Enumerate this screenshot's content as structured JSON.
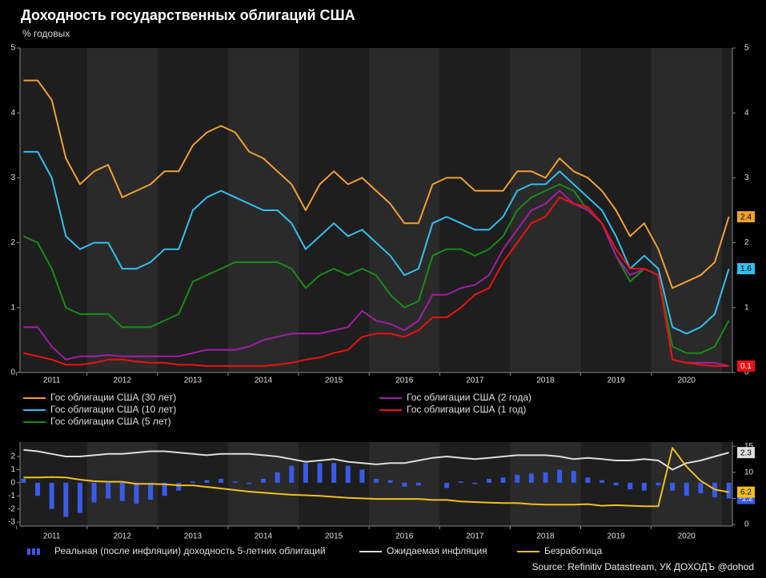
{
  "title": "Доходность государственных облигаций США",
  "subtitle": "% годовых",
  "source": "Source: Refinitiv Datastream, УК ДОХОДЪ @dohod",
  "chart_data": [
    {
      "type": "line",
      "xlim": [
        2011.05,
        2021.15
      ],
      "xticks": [
        {
          "value": 2011.5,
          "label": "2011"
        },
        {
          "value": 2012.5,
          "label": "2012"
        },
        {
          "value": 2013.5,
          "label": "2013"
        },
        {
          "value": 2014.5,
          "label": "2014"
        },
        {
          "value": 2015.5,
          "label": "2015"
        },
        {
          "value": 2016.5,
          "label": "2016"
        },
        {
          "value": 2017.5,
          "label": "2017"
        },
        {
          "value": 2018.5,
          "label": "2018"
        },
        {
          "value": 2019.5,
          "label": "2019"
        },
        {
          "value": 2020.5,
          "label": "2020"
        }
      ],
      "ylim": [
        0,
        5
      ],
      "yticks": [
        0,
        1,
        2,
        3,
        4,
        5
      ],
      "y2lim": [
        0,
        5
      ],
      "y2ticks": [
        0,
        1,
        2,
        3,
        4,
        5
      ],
      "grid": false,
      "x": [
        2011.1,
        2011.3,
        2011.5,
        2011.7,
        2011.9,
        2012.1,
        2012.3,
        2012.5,
        2012.7,
        2012.9,
        2013.1,
        2013.3,
        2013.5,
        2013.7,
        2013.9,
        2014.1,
        2014.3,
        2014.5,
        2014.7,
        2014.9,
        2015.1,
        2015.3,
        2015.5,
        2015.7,
        2015.9,
        2016.1,
        2016.3,
        2016.5,
        2016.7,
        2016.9,
        2017.1,
        2017.3,
        2017.5,
        2017.7,
        2017.9,
        2018.1,
        2018.3,
        2018.5,
        2018.7,
        2018.9,
        2019.1,
        2019.3,
        2019.5,
        2019.7,
        2019.9,
        2020.1,
        2020.3,
        2020.5,
        2020.7,
        2020.9,
        2021.1
      ],
      "series": [
        {
          "name": "Гос облигации США (30 лет)",
          "color": "#f0a030",
          "end_label": true,
          "values": [
            4.5,
            4.5,
            4.2,
            3.3,
            2.9,
            3.1,
            3.2,
            2.7,
            2.8,
            2.9,
            3.1,
            3.1,
            3.5,
            3.7,
            3.8,
            3.7,
            3.4,
            3.3,
            3.1,
            2.9,
            2.5,
            2.9,
            3.1,
            2.9,
            3.0,
            2.8,
            2.6,
            2.3,
            2.3,
            2.9,
            3.0,
            3.0,
            2.8,
            2.8,
            2.8,
            3.1,
            3.1,
            3.0,
            3.3,
            3.1,
            3.0,
            2.8,
            2.5,
            2.1,
            2.3,
            1.9,
            1.3,
            1.4,
            1.5,
            1.7,
            2.4
          ]
        },
        {
          "name": "Гос облигации США (10 лет)",
          "color": "#30c0f0",
          "end_label": true,
          "values": [
            3.4,
            3.4,
            3.0,
            2.1,
            1.9,
            2.0,
            2.0,
            1.6,
            1.6,
            1.7,
            1.9,
            1.9,
            2.5,
            2.7,
            2.8,
            2.7,
            2.6,
            2.5,
            2.5,
            2.3,
            1.9,
            2.1,
            2.3,
            2.1,
            2.2,
            2.0,
            1.8,
            1.5,
            1.6,
            2.3,
            2.4,
            2.3,
            2.2,
            2.2,
            2.4,
            2.8,
            2.9,
            2.9,
            3.1,
            2.9,
            2.7,
            2.5,
            2.1,
            1.6,
            1.8,
            1.6,
            0.7,
            0.6,
            0.7,
            0.9,
            1.6
          ]
        },
        {
          "name": "Гос облигации США (5 лет)",
          "color": "#1a8a1a",
          "end_label": false,
          "values": [
            2.1,
            2.0,
            1.6,
            1.0,
            0.9,
            0.9,
            0.9,
            0.7,
            0.7,
            0.7,
            0.8,
            0.9,
            1.4,
            1.5,
            1.6,
            1.7,
            1.7,
            1.7,
            1.7,
            1.6,
            1.3,
            1.5,
            1.6,
            1.5,
            1.6,
            1.5,
            1.2,
            1.0,
            1.1,
            1.8,
            1.9,
            1.9,
            1.8,
            1.9,
            2.1,
            2.5,
            2.7,
            2.8,
            2.9,
            2.8,
            2.5,
            2.3,
            1.8,
            1.4,
            1.6,
            1.5,
            0.4,
            0.3,
            0.3,
            0.4,
            0.8
          ]
        },
        {
          "name": "Гос облигации США (2 года)",
          "color": "#a020a0",
          "end_label": false,
          "values": [
            0.7,
            0.7,
            0.4,
            0.2,
            0.25,
            0.25,
            0.27,
            0.25,
            0.25,
            0.25,
            0.25,
            0.25,
            0.3,
            0.35,
            0.35,
            0.35,
            0.4,
            0.5,
            0.55,
            0.6,
            0.6,
            0.6,
            0.65,
            0.7,
            0.95,
            0.8,
            0.75,
            0.65,
            0.8,
            1.2,
            1.2,
            1.3,
            1.35,
            1.5,
            1.9,
            2.2,
            2.5,
            2.6,
            2.8,
            2.6,
            2.5,
            2.3,
            1.8,
            1.5,
            1.6,
            1.5,
            0.2,
            0.15,
            0.15,
            0.15,
            0.1
          ]
        },
        {
          "name": "Гос облигации США (1 год)",
          "color": "#ee1111",
          "end_label": true,
          "values": [
            0.3,
            0.25,
            0.2,
            0.12,
            0.12,
            0.15,
            0.2,
            0.2,
            0.17,
            0.15,
            0.15,
            0.12,
            0.12,
            0.1,
            0.1,
            0.1,
            0.1,
            0.1,
            0.12,
            0.15,
            0.2,
            0.23,
            0.3,
            0.35,
            0.55,
            0.6,
            0.6,
            0.55,
            0.65,
            0.85,
            0.85,
            1.0,
            1.2,
            1.3,
            1.7,
            2.0,
            2.3,
            2.4,
            2.7,
            2.6,
            2.55,
            2.3,
            1.9,
            1.6,
            1.6,
            1.5,
            0.2,
            0.15,
            0.12,
            0.1,
            0.1
          ]
        }
      ]
    },
    {
      "type": "combo",
      "xlim": [
        2011.05,
        2021.15
      ],
      "xticks": [
        {
          "value": 2011.5,
          "label": "2011"
        },
        {
          "value": 2012.5,
          "label": "2012"
        },
        {
          "value": 2013.5,
          "label": "2013"
        },
        {
          "value": 2014.5,
          "label": "2014"
        },
        {
          "value": 2015.5,
          "label": "2015"
        },
        {
          "value": 2016.5,
          "label": "2016"
        },
        {
          "value": 2017.5,
          "label": "2017"
        },
        {
          "value": 2018.5,
          "label": "2018"
        },
        {
          "value": 2019.5,
          "label": "2019"
        },
        {
          "value": 2020.5,
          "label": "2020"
        }
      ],
      "ylim": [
        -3.3,
        3.1
      ],
      "yticks": [
        -3,
        -2,
        -1,
        0,
        1,
        2
      ],
      "y2lim": [
        -0.3,
        15.8
      ],
      "y2ticks": [
        0,
        5,
        10,
        15
      ],
      "grid": false,
      "x": [
        2011.1,
        2011.3,
        2011.5,
        2011.7,
        2011.9,
        2012.1,
        2012.3,
        2012.5,
        2012.7,
        2012.9,
        2013.1,
        2013.3,
        2013.5,
        2013.7,
        2013.9,
        2014.1,
        2014.3,
        2014.5,
        2014.7,
        2014.9,
        2015.1,
        2015.3,
        2015.5,
        2015.7,
        2015.9,
        2016.1,
        2016.3,
        2016.5,
        2016.7,
        2016.9,
        2017.1,
        2017.3,
        2017.5,
        2017.7,
        2017.9,
        2018.1,
        2018.3,
        2018.5,
        2018.7,
        2018.9,
        2019.1,
        2019.3,
        2019.5,
        2019.7,
        2019.9,
        2020.1,
        2020.3,
        2020.5,
        2020.7,
        2020.9,
        2021.1
      ],
      "series": [
        {
          "name": "Реальная (после инфляции) доходность 5-летних облигаций",
          "type": "bar",
          "color": "#3a5ae8",
          "axis": "y",
          "end_label": true,
          "values": [
            0.3,
            -1.0,
            -2.0,
            -2.6,
            -2.3,
            -1.5,
            -1.2,
            -1.4,
            -1.6,
            -1.3,
            -1.0,
            -0.6,
            0.1,
            0.2,
            0.3,
            0.1,
            -0.1,
            0.3,
            0.8,
            1.3,
            1.5,
            1.5,
            1.5,
            1.3,
            1.0,
            0.3,
            0.2,
            -0.3,
            -0.2,
            0.0,
            -0.4,
            0.1,
            -0.1,
            0.3,
            0.4,
            0.6,
            0.7,
            0.8,
            1.0,
            0.9,
            0.4,
            0.2,
            -0.2,
            -0.5,
            -0.6,
            -0.2,
            -0.6,
            -1.0,
            -0.8,
            -1.1,
            -1.2
          ]
        },
        {
          "name": "Ожидаемая инфляция",
          "type": "line",
          "color": "#dddddd",
          "axis": "y",
          "end_label": true,
          "values": [
            2.5,
            2.4,
            2.2,
            2.0,
            2.0,
            2.1,
            2.2,
            2.2,
            2.3,
            2.4,
            2.4,
            2.3,
            2.2,
            2.1,
            2.2,
            2.2,
            2.2,
            2.1,
            2.0,
            1.8,
            1.6,
            1.7,
            1.8,
            1.6,
            1.5,
            1.4,
            1.5,
            1.5,
            1.7,
            1.9,
            2.0,
            1.9,
            1.8,
            1.9,
            2.0,
            2.1,
            2.1,
            2.1,
            2.0,
            1.8,
            1.9,
            1.8,
            1.7,
            1.7,
            1.8,
            1.7,
            1.0,
            1.5,
            1.7,
            2.0,
            2.3
          ]
        },
        {
          "name": "Безработица",
          "type": "line",
          "color": "#f0c020",
          "axis": "y2",
          "end_label": true,
          "values": [
            9.0,
            9.0,
            9.1,
            9.0,
            8.6,
            8.3,
            8.2,
            8.2,
            7.8,
            7.8,
            7.7,
            7.5,
            7.5,
            7.2,
            6.9,
            6.6,
            6.3,
            6.1,
            5.9,
            5.7,
            5.6,
            5.5,
            5.3,
            5.1,
            5.0,
            4.9,
            4.9,
            4.9,
            4.9,
            4.7,
            4.7,
            4.4,
            4.3,
            4.2,
            4.1,
            4.1,
            3.9,
            3.8,
            3.8,
            3.8,
            3.9,
            3.6,
            3.7,
            3.6,
            3.5,
            3.5,
            14.7,
            11.1,
            8.4,
            6.7,
            6.2
          ]
        }
      ]
    }
  ]
}
